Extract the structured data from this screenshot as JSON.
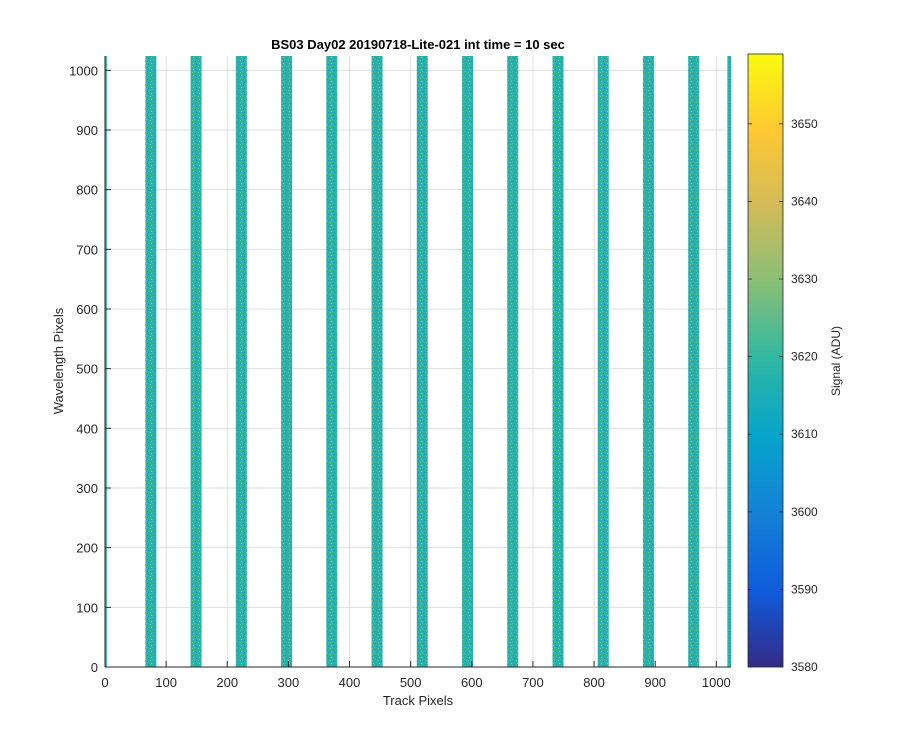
{
  "chart_data": {
    "type": "heatmap",
    "title": "BS03 Day02 20190718-Lite-021 int time = 10 sec",
    "xlabel": "Track Pixels",
    "ylabel": "Wavelength Pixels",
    "xlim": [
      0,
      1024
    ],
    "ylim": [
      0,
      1024
    ],
    "xticks": [
      0,
      100,
      200,
      300,
      400,
      500,
      600,
      700,
      800,
      900,
      1000
    ],
    "yticks": [
      0,
      100,
      200,
      300,
      400,
      500,
      600,
      700,
      800,
      900,
      1000
    ],
    "grid": true,
    "colormap": "parula",
    "colorbar": {
      "label": "Signal (ADU)",
      "range": [
        3580,
        3659
      ],
      "ticks": [
        3580,
        3590,
        3600,
        3610,
        3620,
        3630,
        3640,
        3650
      ],
      "colors": [
        "#352a87",
        "#0f5cdd",
        "#1481d6",
        "#06a4ca",
        "#2eb7a4",
        "#87bf77",
        "#d1bb59",
        "#fec832",
        "#f9fb0e"
      ]
    },
    "stripe_signal_mean": 3620,
    "stripes": [
      {
        "x0": 0,
        "x1": 3
      },
      {
        "x0": 66,
        "x1": 84
      },
      {
        "x0": 140,
        "x1": 158
      },
      {
        "x0": 214,
        "x1": 232
      },
      {
        "x0": 288,
        "x1": 306
      },
      {
        "x0": 362,
        "x1": 380
      },
      {
        "x0": 436,
        "x1": 454
      },
      {
        "x0": 510,
        "x1": 528
      },
      {
        "x0": 584,
        "x1": 602
      },
      {
        "x0": 658,
        "x1": 676
      },
      {
        "x0": 732,
        "x1": 750
      },
      {
        "x0": 806,
        "x1": 824
      },
      {
        "x0": 880,
        "x1": 898
      },
      {
        "x0": 954,
        "x1": 972
      },
      {
        "x0": 1018,
        "x1": 1024
      }
    ]
  }
}
